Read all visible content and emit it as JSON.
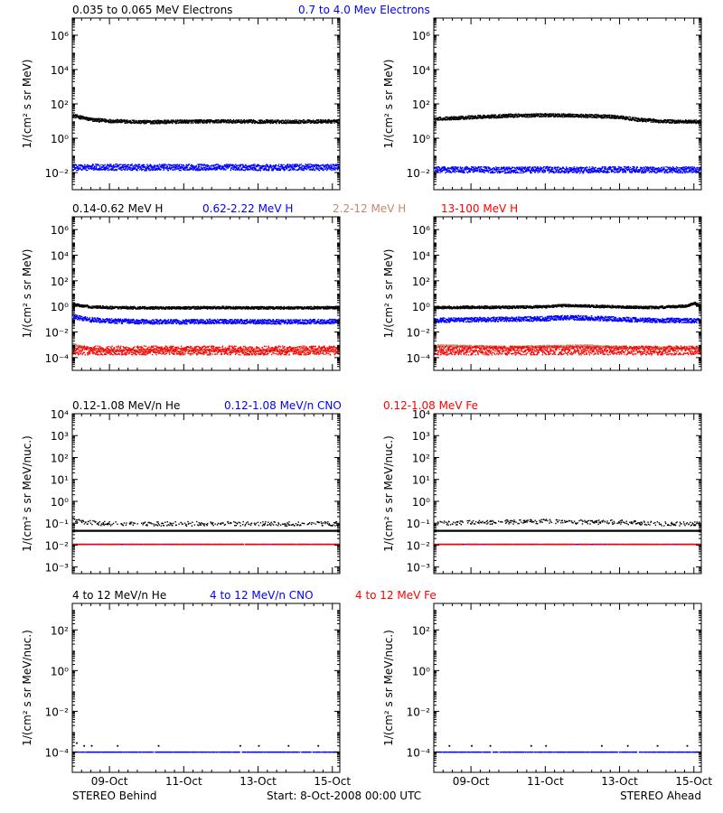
{
  "footer": {
    "left": "STEREO Behind",
    "center": "Start:  8-Oct-2008 00:00 UTC",
    "right": "STEREO Ahead"
  },
  "x_ticks": [
    "09-Oct",
    "11-Oct",
    "13-Oct",
    "15-Oct"
  ],
  "colors": {
    "black": "#000000",
    "blue": "#0000ff",
    "tan": "#c08a70",
    "red": "#ff0000"
  },
  "rows": [
    {
      "headers": [
        {
          "text": "0.035 to 0.065 MeV Electrons",
          "color": "#000000"
        },
        {
          "text": "0.7 to 4.0 Mev Electrons",
          "color": "#0000ff"
        }
      ],
      "ylabel": "1/(cm² s sr MeV)",
      "ytick_labels": [
        "10⁻²",
        "10⁰",
        "10²",
        "10⁴",
        "10⁶"
      ]
    },
    {
      "headers": [
        {
          "text": "0.14-0.62 MeV H",
          "color": "#000000"
        },
        {
          "text": "0.62-2.22 MeV H",
          "color": "#0000ff"
        },
        {
          "text": "2.2-12 MeV H",
          "color": "#c08a70"
        },
        {
          "text": "13-100 MeV H",
          "color": "#ff0000"
        }
      ],
      "ylabel": "1/(cm² s sr MeV)",
      "ytick_labels": [
        "10⁻⁴",
        "10⁻²",
        "10⁰",
        "10²",
        "10⁴",
        "10⁶"
      ]
    },
    {
      "headers": [
        {
          "text": "0.12-1.08 MeV/n He",
          "color": "#000000"
        },
        {
          "text": "0.12-1.08 MeV/n CNO",
          "color": "#0000ff"
        },
        {
          "text": "0.12-1.08 MeV Fe",
          "color": "#ff0000"
        }
      ],
      "ylabel": "1/(cm² s sr MeV/nuc.)",
      "ytick_labels": [
        "10⁻³",
        "10⁻²",
        "10⁻¹",
        "10⁰",
        "10¹",
        "10²",
        "10³",
        "10⁴"
      ]
    },
    {
      "headers": [
        {
          "text": "4 to 12 MeV/n He",
          "color": "#000000"
        },
        {
          "text": "4 to 12 MeV/n CNO",
          "color": "#0000ff"
        },
        {
          "text": "4 to 12 MeV Fe",
          "color": "#ff0000"
        }
      ],
      "ylabel": "1/(cm² s sr MeV/nuc.)",
      "ytick_labels": [
        "10⁻⁴",
        "10⁻²",
        "10⁰",
        "10²"
      ]
    }
  ],
  "chart_data": [
    {
      "type": "scatter",
      "title": "STEREO Behind — 0.035 to 0.065 MeV Electrons / 0.7 to 4.0 Mev Electrons",
      "xlabel": "",
      "ylabel": "1/(cm² s sr MeV)",
      "yscale": "log",
      "ylim": [
        0.001,
        10000000
      ],
      "x_range_days": [
        0,
        7.2
      ],
      "x_unit": "days since 8-Oct-2008 00:00 UTC",
      "series": [
        {
          "name": "0.035 to 0.065 MeV Electrons",
          "color": "#000000",
          "x": [
            0,
            0.2,
            0.5,
            1,
            1.5,
            2,
            3,
            4,
            5,
            6,
            7.2
          ],
          "y": [
            22,
            18,
            13,
            11,
            10,
            9.5,
            10,
            10.5,
            10,
            10,
            10.5
          ]
        },
        {
          "name": "0.7 to 4.0 Mev Electrons",
          "color": "#0000ff",
          "x": [
            0,
            1,
            2,
            3,
            4,
            5,
            6,
            7.2
          ],
          "y": [
            0.022,
            0.022,
            0.021,
            0.022,
            0.022,
            0.021,
            0.022,
            0.022
          ]
        }
      ]
    },
    {
      "type": "scatter",
      "title": "STEREO Ahead — 0.035 to 0.065 MeV Electrons / 0.7 to 4.0 Mev Electrons",
      "xlabel": "",
      "ylabel": "1/(cm² s sr MeV)",
      "yscale": "log",
      "ylim": [
        0.001,
        10000000
      ],
      "x_range_days": [
        0,
        7.2
      ],
      "x_unit": "days since 8-Oct-2008 00:00 UTC",
      "series": [
        {
          "name": "0.035 to 0.065 MeV Electrons",
          "color": "#000000",
          "x": [
            0,
            0.5,
            1,
            2,
            3,
            4,
            4.6,
            5,
            5.5,
            6,
            6.5,
            7.2
          ],
          "y": [
            14,
            16,
            18,
            22,
            24,
            22,
            20,
            18,
            13,
            11,
            10,
            10
          ]
        },
        {
          "name": "0.7 to 4.0 Mev Electrons",
          "color": "#0000ff",
          "x": [
            0,
            1,
            2,
            3,
            4,
            5,
            6,
            7.2
          ],
          "y": [
            0.016,
            0.016,
            0.015,
            0.016,
            0.015,
            0.016,
            0.015,
            0.016
          ]
        }
      ]
    },
    {
      "type": "scatter",
      "title": "STEREO Behind — 0.14-0.62 / 0.62-2.22 / 2.2-12 / 13-100 MeV H",
      "xlabel": "",
      "ylabel": "1/(cm² s sr MeV)",
      "yscale": "log",
      "ylim": [
        1e-05,
        10000000
      ],
      "x_range_days": [
        0,
        7.2
      ],
      "x_unit": "days since 8-Oct-2008 00:00 UTC",
      "series": [
        {
          "name": "0.14-0.62 MeV H",
          "color": "#000000",
          "x": [
            0,
            0.2,
            0.5,
            1,
            2,
            3,
            4,
            5,
            6,
            7.2
          ],
          "y": [
            1.6,
            1.3,
            1.0,
            0.9,
            0.85,
            0.85,
            0.9,
            0.85,
            0.85,
            0.9
          ]
        },
        {
          "name": "0.62-2.22 MeV H",
          "color": "#0000ff",
          "x": [
            0,
            0.2,
            0.5,
            1,
            2,
            3,
            4,
            5,
            6,
            7.2
          ],
          "y": [
            0.18,
            0.14,
            0.1,
            0.08,
            0.07,
            0.07,
            0.075,
            0.07,
            0.07,
            0.075
          ]
        },
        {
          "name": "2.2-12 MeV H",
          "color": "#c08a70",
          "x": [
            0,
            0.2,
            0.5,
            1,
            2,
            3,
            4,
            5,
            6,
            7.2
          ],
          "y": [
            0.0012,
            0.0008,
            0.0005,
            0.0004,
            0.0004,
            0.0004,
            0.0004,
            0.0004,
            0.0004,
            0.0004
          ]
        },
        {
          "name": "13-100 MeV H",
          "color": "#ff0000",
          "x": [
            0,
            1,
            2,
            3,
            4,
            5,
            6,
            7.2
          ],
          "y": [
            0.0004,
            0.0004,
            0.0004,
            0.0004,
            0.0004,
            0.0004,
            0.0004,
            0.0004
          ]
        }
      ]
    },
    {
      "type": "scatter",
      "title": "STEREO Ahead — 0.14-0.62 / 0.62-2.22 / 2.2-12 / 13-100 MeV H",
      "xlabel": "",
      "ylabel": "1/(cm² s sr MeV)",
      "yscale": "log",
      "ylim": [
        1e-05,
        10000000
      ],
      "x_range_days": [
        0,
        7.2
      ],
      "x_unit": "days since 8-Oct-2008 00:00 UTC",
      "series": [
        {
          "name": "0.14-0.62 MeV H",
          "color": "#000000",
          "x": [
            0,
            1,
            2,
            3,
            3.5,
            4,
            5,
            6,
            6.8,
            7.0,
            7.2
          ],
          "y": [
            0.9,
            0.95,
            0.95,
            1.05,
            1.3,
            1.2,
            1.0,
            0.9,
            1.2,
            2.0,
            1.1
          ]
        },
        {
          "name": "0.62-2.22 MeV H",
          "color": "#0000ff",
          "x": [
            0,
            1,
            2,
            3,
            3.5,
            4,
            5,
            6,
            7.2
          ],
          "y": [
            0.09,
            0.1,
            0.11,
            0.12,
            0.15,
            0.14,
            0.11,
            0.09,
            0.085
          ]
        },
        {
          "name": "2.2-12 MeV H",
          "color": "#c08a70",
          "x": [
            0,
            1,
            2,
            3,
            4,
            5,
            6,
            7.2
          ],
          "y": [
            0.0009,
            0.0008,
            0.0007,
            0.0008,
            0.0009,
            0.0007,
            0.0006,
            0.0006
          ]
        },
        {
          "name": "13-100 MeV H",
          "color": "#ff0000",
          "x": [
            0,
            1,
            2,
            3,
            4,
            5,
            6,
            7.2
          ],
          "y": [
            0.0004,
            0.0004,
            0.0004,
            0.0004,
            0.0004,
            0.0004,
            0.0004,
            0.0004
          ]
        }
      ]
    },
    {
      "type": "scatter",
      "title": "STEREO Behind — 0.12-1.08 MeV/n He / CNO / Fe",
      "xlabel": "",
      "ylabel": "1/(cm² s sr MeV/nuc.)",
      "yscale": "log",
      "ylim": [
        0.0005,
        10000
      ],
      "x_range_days": [
        0,
        7.2
      ],
      "x_unit": "days since 8-Oct-2008 00:00 UTC",
      "series": [
        {
          "name": "0.12-1.08 MeV/n He",
          "color": "#000000",
          "x": [
            0,
            0.3,
            1,
            2,
            3,
            4,
            5,
            6,
            7.2
          ],
          "y": [
            0.15,
            0.12,
            0.1,
            0.1,
            0.1,
            0.1,
            0.1,
            0.1,
            0.1
          ]
        },
        {
          "name": "0.12-1.08 MeV/n CNO",
          "color": "#0000ff",
          "x": [
            0,
            1,
            2,
            3,
            4,
            5,
            6,
            7.2
          ],
          "y": [
            0.011,
            0.011,
            0.011,
            0.011,
            0.011,
            0.011,
            0.011,
            0.011
          ]
        },
        {
          "name": "0.12-1.08 MeV Fe",
          "color": "#ff0000",
          "x": [
            0,
            1,
            2,
            3,
            4,
            5,
            6,
            7.2
          ],
          "y": [
            0.011,
            0.011,
            0.011,
            0.011,
            0.011,
            0.011,
            0.011,
            0.011
          ]
        }
      ],
      "reference_line": {
        "y": 0.045,
        "color": "#000000"
      }
    },
    {
      "type": "scatter",
      "title": "STEREO Ahead — 0.12-1.08 MeV/n He / CNO / Fe",
      "xlabel": "",
      "ylabel": "1/(cm² s sr MeV/nuc.)",
      "yscale": "log",
      "ylim": [
        0.0005,
        10000
      ],
      "x_range_days": [
        0,
        7.2
      ],
      "x_unit": "days since 8-Oct-2008 00:00 UTC",
      "series": [
        {
          "name": "0.12-1.08 MeV/n He",
          "color": "#000000",
          "x": [
            0,
            1,
            2,
            3,
            4,
            5,
            6,
            7.2
          ],
          "y": [
            0.1,
            0.12,
            0.12,
            0.13,
            0.12,
            0.12,
            0.1,
            0.1
          ]
        },
        {
          "name": "0.12-1.08 MeV/n CNO",
          "color": "#0000ff",
          "x": [
            0,
            1,
            2,
            3,
            4,
            5,
            6,
            7.2
          ],
          "y": [
            0.011,
            0.011,
            0.011,
            0.011,
            0.011,
            0.011,
            0.011,
            0.011
          ]
        },
        {
          "name": "0.12-1.08 MeV Fe",
          "color": "#ff0000",
          "x": [
            0,
            1,
            2,
            3,
            4,
            5,
            6,
            7.2
          ],
          "y": [
            0.011,
            0.011,
            0.011,
            0.011,
            0.011,
            0.011,
            0.011,
            0.011
          ]
        }
      ],
      "reference_line": {
        "y": 0.045,
        "color": "#000000"
      }
    },
    {
      "type": "scatter",
      "title": "STEREO Behind — 4 to 12 MeV/n He / CNO / Fe",
      "xlabel": "",
      "ylabel": "1/(cm² s sr MeV/nuc.)",
      "yscale": "log",
      "ylim": [
        1e-05,
        2000
      ],
      "x_range_days": [
        0,
        7.2
      ],
      "x_unit": "days since 8-Oct-2008 00:00 UTC",
      "series": [
        {
          "name": "4 to 12 MeV/n He",
          "color": "#000000",
          "x": [
            0.1,
            0.3,
            0.5,
            1.2,
            2.3,
            4.5,
            5.0,
            5.8,
            6.6
          ],
          "y": [
            0.0003,
            0.00022,
            0.00022,
            0.00022,
            0.00022,
            0.00022,
            0.00022,
            0.00022,
            0.00022
          ]
        },
        {
          "name": "4 to 12 MeV/n CNO",
          "color": "#0000ff",
          "x": [
            0,
            1,
            2,
            3,
            4,
            5,
            6,
            7.2
          ],
          "y": [
            0.0001,
            0.0001,
            0.0001,
            0.0001,
            0.0001,
            0.0001,
            0.0001,
            0.0001
          ]
        },
        {
          "name": "4 to 12 MeV Fe",
          "color": "#ff0000",
          "x": [],
          "y": []
        }
      ]
    },
    {
      "type": "scatter",
      "title": "STEREO Ahead — 4 to 12 MeV/n He / CNO / Fe",
      "xlabel": "",
      "ylabel": "1/(cm² s sr MeV/nuc.)",
      "yscale": "log",
      "ylim": [
        1e-05,
        2000
      ],
      "x_range_days": [
        0,
        7.2
      ],
      "x_unit": "days since 8-Oct-2008 00:00 UTC",
      "series": [
        {
          "name": "4 to 12 MeV/n He",
          "color": "#000000",
          "x": [
            0.4,
            1.0,
            1.5,
            2.6,
            3.0,
            4.5,
            5.2,
            6.0,
            6.8
          ],
          "y": [
            0.00022,
            0.00022,
            0.00022,
            0.00022,
            0.00022,
            0.00022,
            0.00022,
            0.00022,
            0.00022
          ]
        },
        {
          "name": "4 to 12 MeV/n CNO",
          "color": "#0000ff",
          "x": [
            0,
            1,
            2,
            3,
            4,
            5,
            6,
            7.2
          ],
          "y": [
            0.0001,
            0.0001,
            0.0001,
            0.0001,
            0.0001,
            0.0001,
            0.0001,
            0.0001
          ]
        },
        {
          "name": "4 to 12 MeV Fe",
          "color": "#ff0000",
          "x": [],
          "y": []
        }
      ]
    }
  ]
}
